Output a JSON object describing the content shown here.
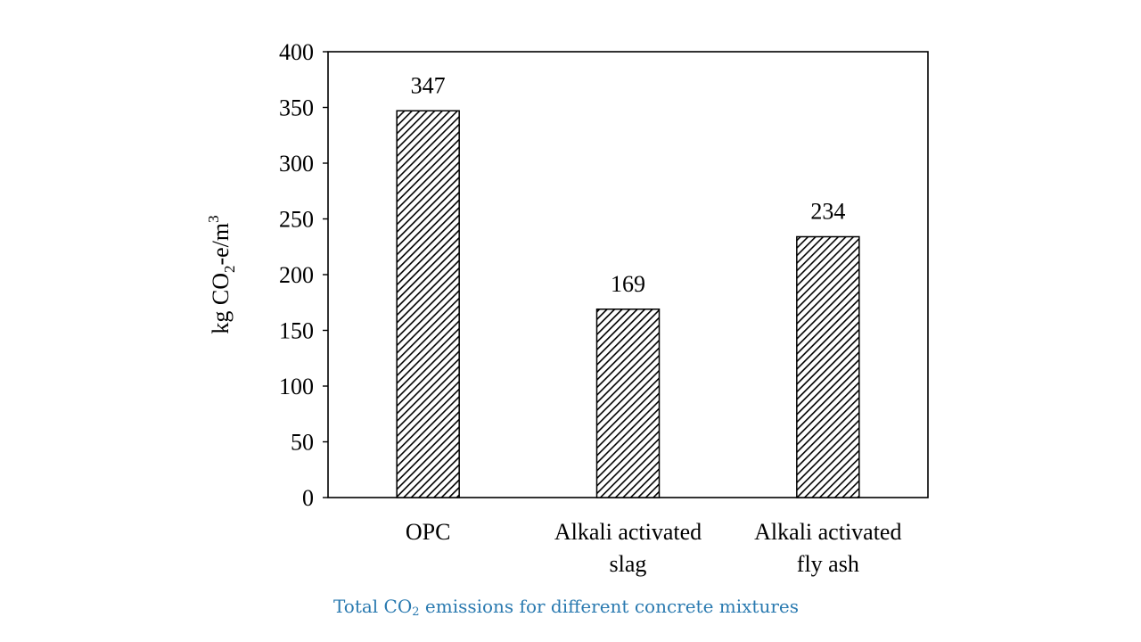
{
  "chart_data": {
    "type": "bar",
    "categories": [
      "OPC",
      "Alkali activated slag",
      "Alkali activated fly ash"
    ],
    "category_lines": [
      [
        "OPC"
      ],
      [
        "Alkali activated",
        "slag"
      ],
      [
        "Alkali activated",
        "fly ash"
      ]
    ],
    "values": [
      347,
      169,
      234
    ],
    "data_labels": [
      "347",
      "169",
      "234"
    ],
    "ylabel": {
      "prefix": "kg CO",
      "sub": "2",
      "middle": "-e/m",
      "sup": "3"
    },
    "xlabel": "",
    "ylim": [
      0,
      400
    ],
    "yticks": [
      0,
      50,
      100,
      150,
      200,
      250,
      300,
      350,
      400
    ],
    "grid": false,
    "legend": "none",
    "bar_fill": "diagonal hatch",
    "bar_color": "#000000"
  },
  "caption": {
    "prefix": "Total CO",
    "sub": "2",
    "suffix": " emissions for different concrete mixtures",
    "color": "#2a7ab0"
  }
}
